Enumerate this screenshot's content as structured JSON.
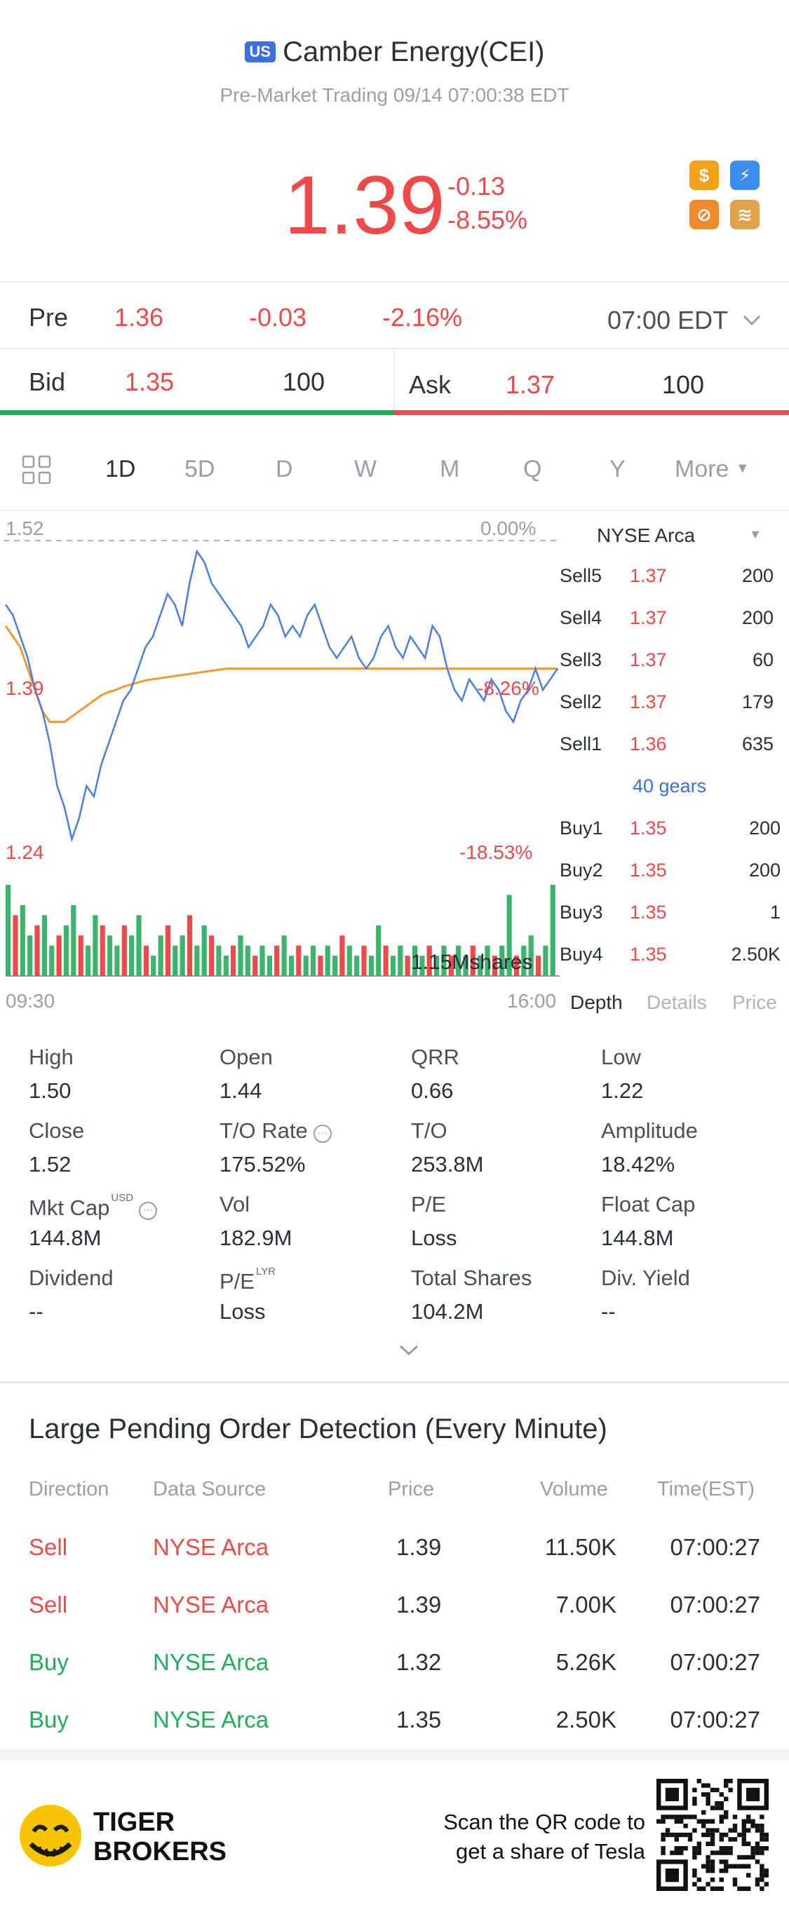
{
  "header": {
    "market_badge": "US",
    "title": "Camber Energy(CEI)",
    "subtitle": "Pre-Market Trading 09/14 07:00:38 EDT",
    "price": "1.39",
    "change": "-0.13",
    "change_pct": "-8.55%",
    "icons": [
      {
        "name": "dollar-icon",
        "glyph": "$",
        "color": "#f4a01a"
      },
      {
        "name": "lightning-icon",
        "glyph": "⚡",
        "color": "#3b8ef0"
      },
      {
        "name": "no-short-icon",
        "glyph": "⊘",
        "color": "#f08a2a"
      },
      {
        "name": "layers-icon",
        "glyph": "≋",
        "color": "#e2a24a"
      }
    ]
  },
  "pre": {
    "label": "Pre",
    "price": "1.36",
    "change": "-0.03",
    "change_pct": "-2.16%",
    "time": "07:00 EDT"
  },
  "quote": {
    "bid_label": "Bid",
    "bid_price": "1.35",
    "bid_size": "100",
    "ask_label": "Ask",
    "ask_price": "1.37",
    "ask_size": "100"
  },
  "tabs": [
    "1D",
    "5D",
    "D",
    "W",
    "M",
    "Q",
    "Y",
    "More"
  ],
  "chart": {
    "high_label": "1.52",
    "high_pct": "0.00%",
    "mid_label": "1.39",
    "mid_pct": "-8.26%",
    "low_label": "1.24",
    "low_pct": "-18.53%",
    "volume_label": "1.15Mshares",
    "time_start": "09:30",
    "time_end": "16:00"
  },
  "chart_data": {
    "type": "line",
    "series": [
      {
        "values": [
          1.46,
          1.45,
          1.43,
          1.41,
          1.38,
          1.36,
          1.33,
          1.29,
          1.27,
          1.24,
          1.26,
          1.29,
          1.28,
          1.31,
          1.33,
          1.35,
          1.37,
          1.38,
          1.4,
          1.42,
          1.43,
          1.45,
          1.47,
          1.46,
          1.44,
          1.48,
          1.51,
          1.5,
          1.48,
          1.47,
          1.46,
          1.45,
          1.44,
          1.42,
          1.43,
          1.44,
          1.46,
          1.45,
          1.43,
          1.44,
          1.43,
          1.45,
          1.46,
          1.44,
          1.42,
          1.41,
          1.42,
          1.43,
          1.41,
          1.4,
          1.41,
          1.43,
          1.44,
          1.42,
          1.41,
          1.43,
          1.42,
          1.41,
          1.44,
          1.43,
          1.4,
          1.38,
          1.37,
          1.39,
          1.38,
          1.37,
          1.39,
          1.38,
          1.36,
          1.35,
          1.37,
          1.38,
          1.4,
          1.38,
          1.39,
          1.4
        ]
      },
      {
        "values": [
          1.44,
          1.43,
          1.42,
          1.4,
          1.38,
          1.36,
          1.35,
          1.35,
          1.35,
          1.355,
          1.36,
          1.365,
          1.37,
          1.375,
          1.378,
          1.38,
          1.383,
          1.385,
          1.387,
          1.389,
          1.39,
          1.391,
          1.392,
          1.393,
          1.394,
          1.395,
          1.396,
          1.397,
          1.398,
          1.399,
          1.4,
          1.4,
          1.4,
          1.4,
          1.4,
          1.4,
          1.4,
          1.4,
          1.4,
          1.4,
          1.4,
          1.4,
          1.4,
          1.4,
          1.4,
          1.4,
          1.4,
          1.4,
          1.4,
          1.4,
          1.4,
          1.4,
          1.4,
          1.4,
          1.4,
          1.4,
          1.4,
          1.4,
          1.4,
          1.4,
          1.4,
          1.4,
          1.4,
          1.4,
          1.4,
          1.4,
          1.4,
          1.4,
          1.4,
          1.4,
          1.4,
          1.4,
          1.4,
          1.4,
          1.4,
          1.4
        ]
      }
    ],
    "ylim": [
      1.24,
      1.52
    ],
    "colors": {
      "price": "#4a7ee0",
      "avg": "#f29a2e",
      "vol_up": "#3cb56c",
      "vol_down": "#ef4a4a"
    },
    "volume": [
      9,
      6,
      7,
      4,
      5,
      6,
      3,
      4,
      5,
      7,
      4,
      3,
      6,
      5,
      4,
      3,
      5,
      4,
      6,
      3,
      2,
      4,
      5,
      3,
      4,
      6,
      3,
      5,
      4,
      3,
      2,
      3,
      4,
      3,
      2,
      3,
      2,
      3,
      4,
      2,
      3,
      2,
      3,
      2,
      3,
      2,
      4,
      3,
      2,
      3,
      2,
      5,
      3,
      2,
      3,
      2,
      3,
      2,
      3,
      2,
      3,
      2,
      3,
      2,
      3,
      2,
      3,
      2,
      3,
      8,
      2,
      3,
      4,
      2,
      3,
      9
    ],
    "grid": false
  },
  "orderbook": {
    "exchange": "NYSE Arca",
    "asks": [
      {
        "label": "Sell5",
        "price": "1.37",
        "vol": "200"
      },
      {
        "label": "Sell4",
        "price": "1.37",
        "vol": "200"
      },
      {
        "label": "Sell3",
        "price": "1.37",
        "vol": "60"
      },
      {
        "label": "Sell2",
        "price": "1.37",
        "vol": "179"
      },
      {
        "label": "Sell1",
        "price": "1.36",
        "vol": "635"
      }
    ],
    "gears": "40 gears",
    "bids": [
      {
        "label": "Buy1",
        "price": "1.35",
        "vol": "200"
      },
      {
        "label": "Buy2",
        "price": "1.35",
        "vol": "200"
      },
      {
        "label": "Buy3",
        "price": "1.35",
        "vol": "1"
      },
      {
        "label": "Buy4",
        "price": "1.35",
        "vol": "2.50K"
      }
    ],
    "tabs": [
      "Depth",
      "Details",
      "Price"
    ]
  },
  "stats": [
    {
      "label": "High",
      "value": "1.50"
    },
    {
      "label": "Open",
      "value": "1.44"
    },
    {
      "label": "QRR",
      "value": "0.66"
    },
    {
      "label": "Low",
      "value": "1.22"
    },
    {
      "label": "Close",
      "value": "1.52"
    },
    {
      "label": "T/O Rate",
      "value": "175.52%"
    },
    {
      "label": "T/O",
      "value": "253.8M"
    },
    {
      "label": "Amplitude",
      "value": "18.42%"
    },
    {
      "label": "Mkt Cap",
      "value": "144.8M",
      "sup": "USD"
    },
    {
      "label": "Vol",
      "value": "182.9M"
    },
    {
      "label": "P/E",
      "value": "Loss"
    },
    {
      "label": "Float Cap",
      "value": "144.8M"
    },
    {
      "label": "Dividend",
      "value": "--"
    },
    {
      "label": "P/E",
      "value": "Loss",
      "sup": "LYR"
    },
    {
      "label": "Total Shares",
      "value": "104.2M"
    },
    {
      "label": "Div. Yield",
      "value": "--"
    }
  ],
  "large_orders": {
    "title": "Large Pending Order Detection (Every Minute)",
    "headers": [
      "Direction",
      "Data Source",
      "Price",
      "Volume",
      "Time(EST)"
    ],
    "rows": [
      {
        "direction": "Sell",
        "source": "NYSE Arca",
        "price": "1.39",
        "volume": "11.50K",
        "time": "07:00:27"
      },
      {
        "direction": "Sell",
        "source": "NYSE Arca",
        "price": "1.39",
        "volume": "7.00K",
        "time": "07:00:27"
      },
      {
        "direction": "Buy",
        "source": "NYSE Arca",
        "price": "1.32",
        "volume": "5.26K",
        "time": "07:00:27"
      },
      {
        "direction": "Buy",
        "source": "NYSE Arca",
        "price": "1.35",
        "volume": "2.50K",
        "time": "07:00:27"
      }
    ]
  },
  "footer": {
    "brand_line1": "TIGER",
    "brand_line2": "BROKERS",
    "qr_text_line1": "Scan the QR code to",
    "qr_text_line2": "get a share of Tesla"
  }
}
